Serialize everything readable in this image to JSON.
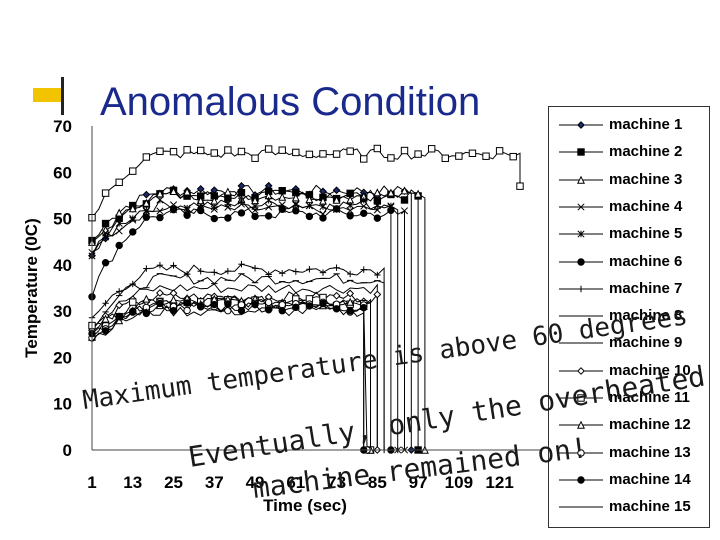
{
  "title": "Anomalous Condition",
  "chart_data": {
    "type": "line",
    "xlabel": "Time (sec)",
    "ylabel": "Temperature (0C)",
    "ylim": [
      0,
      70
    ],
    "yticks": [
      0,
      10,
      20,
      30,
      40,
      50,
      60,
      70
    ],
    "xticks": [
      "1",
      "13",
      "25",
      "37",
      "49",
      "61",
      "73",
      "85",
      "97",
      "109",
      "121"
    ],
    "xlim": [
      1,
      127
    ],
    "grid": false,
    "legend_position": "right",
    "series": [
      {
        "name": "machine 1",
        "marker": "diamond",
        "start": 42,
        "plateau": 56,
        "end_x": 95,
        "drop_to": 0
      },
      {
        "name": "machine 2",
        "marker": "square",
        "start": 45,
        "plateau": 55,
        "end_x": 97,
        "drop_to": 0
      },
      {
        "name": "machine 3",
        "marker": "triangle",
        "start": 44,
        "plateau": 55,
        "end_x": 99,
        "drop_to": 0
      },
      {
        "name": "machine 4",
        "marker": "x",
        "start": 43,
        "plateau": 52,
        "end_x": 93,
        "drop_to": 0
      },
      {
        "name": "machine 5",
        "marker": "asterisk",
        "start": 42,
        "plateau": 53,
        "end_x": 91,
        "drop_to": 0
      },
      {
        "name": "machine 6",
        "marker": "circle",
        "start": 34,
        "plateau": 51,
        "end_x": 89,
        "drop_to": 0
      },
      {
        "name": "machine 7",
        "marker": "plus",
        "start": 28,
        "plateau": 39,
        "end_x": 87,
        "drop_to": 0
      },
      {
        "name": "machine 8",
        "marker": "dash",
        "start": 27,
        "plateau": 37,
        "end_x": 87,
        "drop_to": 0
      },
      {
        "name": "machine 9",
        "marker": "none",
        "start": 26,
        "plateau": 35,
        "end_x": 85,
        "drop_to": 0
      },
      {
        "name": "machine 10",
        "marker": "diamond-o",
        "start": 26,
        "plateau": 33,
        "end_x": 85,
        "drop_to": 0
      },
      {
        "name": "machine 11",
        "marker": "square-o",
        "start": 26,
        "plateau": 32,
        "end_x": 83,
        "drop_to": 0
      },
      {
        "name": "machine 12",
        "marker": "triangle-o",
        "start": 25,
        "plateau": 32,
        "end_x": 83,
        "drop_to": 0
      },
      {
        "name": "machine 13",
        "marker": "circle-o",
        "start": 25,
        "plateau": 31,
        "end_x": 82,
        "drop_to": 0
      },
      {
        "name": "machine 14",
        "marker": "circle",
        "start": 24,
        "plateau": 31,
        "end_x": 81,
        "drop_to": 0
      },
      {
        "name": "machine 15",
        "marker": "none",
        "start": 24,
        "plateau": 30,
        "end_x": 81,
        "drop_to": 0
      },
      {
        "name": "",
        "marker": "square-o",
        "start": 50,
        "plateau": 64,
        "end_x": 127,
        "drop_to": 57,
        "overheated": true
      }
    ]
  },
  "annotations": {
    "line1": "Maximum temperature is above 60 degrees",
    "line2": "Eventually, only the overheated",
    "line3": "machine remained on!"
  }
}
